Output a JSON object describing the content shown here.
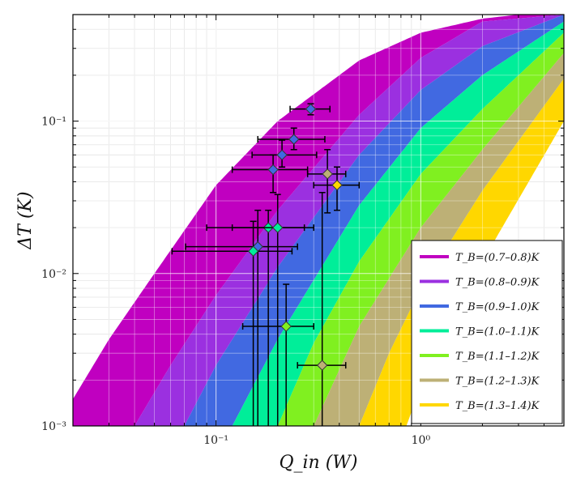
{
  "chart_data": {
    "type": "area",
    "title": "",
    "xlabel": "Q_in (W)",
    "ylabel": "ΔT (K)",
    "x_scale": "log",
    "y_scale": "log",
    "xlim": [
      0.02,
      5
    ],
    "ylim": [
      0.001,
      0.5
    ],
    "grid": true,
    "legend_placement": "bottom-right",
    "x_ticks": [
      {
        "value": 0.1,
        "label": "10⁻¹"
      },
      {
        "value": 1,
        "label": "10⁰"
      }
    ],
    "y_ticks": [
      {
        "value": 0.001,
        "label": "10⁻³"
      },
      {
        "value": 0.01,
        "label": "10⁻²"
      },
      {
        "value": 0.1,
        "label": "10⁻¹"
      }
    ],
    "bands": [
      {
        "name": "T_B=(0.7–0.8)K",
        "color": "#C000C0",
        "lower_x": [
          0.04,
          0.06,
          0.1,
          0.2,
          0.5,
          1.0,
          2.0,
          5.0
        ],
        "lower_y": [
          0.001,
          0.0025,
          0.0072,
          0.026,
          0.11,
          0.26,
          0.45,
          0.5
        ],
        "upper_x": [
          0.02,
          0.03,
          0.05,
          0.1,
          0.2,
          0.5,
          1.0,
          2.0,
          3.0
        ],
        "upper_y": [
          0.0015,
          0.0037,
          0.01,
          0.038,
          0.1,
          0.25,
          0.38,
          0.47,
          0.5
        ]
      },
      {
        "name": "T_B=(0.8–0.9)K",
        "color": "#9B30E0",
        "lower_x": [
          0.07,
          0.1,
          0.2,
          0.5,
          1.0,
          2.0,
          5.0
        ],
        "lower_y": [
          0.001,
          0.0025,
          0.011,
          0.06,
          0.16,
          0.31,
          0.5
        ]
      },
      {
        "name": "T_B=(0.9–1.0)K",
        "color": "#4169E1",
        "lower_x": [
          0.12,
          0.2,
          0.5,
          1.0,
          2.0,
          5.0
        ],
        "lower_y": [
          0.001,
          0.0037,
          0.028,
          0.09,
          0.2,
          0.45
        ]
      },
      {
        "name": "T_B=(1.0–1.1)K",
        "color": "#00EE99",
        "lower_x": [
          0.2,
          0.3,
          0.5,
          1.0,
          2.0,
          5.0
        ],
        "lower_y": [
          0.001,
          0.0035,
          0.012,
          0.045,
          0.12,
          0.38
        ]
      },
      {
        "name": "T_B=(1.1–1.2)K",
        "color": "#80F020",
        "lower_x": [
          0.3,
          0.5,
          1.0,
          2.0,
          5.0
        ],
        "lower_y": [
          0.001,
          0.0045,
          0.02,
          0.065,
          0.28
        ]
      },
      {
        "name": "T_B=(1.2–1.3)K",
        "color": "#BDB076",
        "lower_x": [
          0.5,
          0.7,
          1.0,
          2.0,
          5.0
        ],
        "lower_y": [
          0.001,
          0.003,
          0.008,
          0.035,
          0.19
        ]
      },
      {
        "name": "T_B=(1.3–1.4)K",
        "color": "#FFD700",
        "lower_x": [
          0.85,
          1.0,
          2.0,
          5.0
        ],
        "lower_y": [
          0.001,
          0.0018,
          0.012,
          0.1
        ]
      }
    ],
    "points": [
      {
        "x": 0.29,
        "y": 0.12,
        "xlo": 0.23,
        "xhi": 0.36,
        "ylo": 0.11,
        "yhi": 0.13,
        "color": "#4169E1"
      },
      {
        "x": 0.24,
        "y": 0.076,
        "xlo": 0.16,
        "xhi": 0.34,
        "ylo": 0.065,
        "yhi": 0.09,
        "color": "#4169E1"
      },
      {
        "x": 0.21,
        "y": 0.06,
        "xlo": 0.15,
        "xhi": 0.31,
        "ylo": 0.05,
        "yhi": 0.075,
        "color": "#4169E1"
      },
      {
        "x": 0.19,
        "y": 0.048,
        "xlo": 0.12,
        "xhi": 0.28,
        "ylo": 0.034,
        "yhi": 0.06,
        "color": "#4169E1"
      },
      {
        "x": 0.35,
        "y": 0.045,
        "xlo": 0.28,
        "xhi": 0.43,
        "ylo": 0.025,
        "yhi": 0.065,
        "color": "#BDB076"
      },
      {
        "x": 0.39,
        "y": 0.038,
        "xlo": 0.3,
        "xhi": 0.5,
        "ylo": 0.026,
        "yhi": 0.05,
        "color": "#FFD700"
      },
      {
        "x": 0.18,
        "y": 0.02,
        "xlo": 0.09,
        "xhi": 0.27,
        "ylo": 0.001,
        "yhi": 0.026,
        "color": "#00EE99"
      },
      {
        "x": 0.2,
        "y": 0.02,
        "xlo": 0.12,
        "xhi": 0.3,
        "ylo": 0.001,
        "yhi": 0.033,
        "color": "#00EE99"
      },
      {
        "x": 0.16,
        "y": 0.015,
        "xlo": 0.071,
        "xhi": 0.25,
        "ylo": 0.001,
        "yhi": 0.026,
        "color": "#4169E1"
      },
      {
        "x": 0.152,
        "y": 0.014,
        "xlo": 0.061,
        "xhi": 0.235,
        "ylo": 0.001,
        "yhi": 0.022,
        "color": "#00EE99"
      },
      {
        "x": 0.22,
        "y": 0.0045,
        "xlo": 0.135,
        "xhi": 0.3,
        "ylo": 0.001,
        "yhi": 0.0085,
        "color": "#80F020"
      },
      {
        "x": 0.33,
        "y": 0.0025,
        "xlo": 0.25,
        "xhi": 0.43,
        "ylo": 0.001,
        "yhi": 0.034,
        "color": "#BDB076"
      }
    ]
  }
}
